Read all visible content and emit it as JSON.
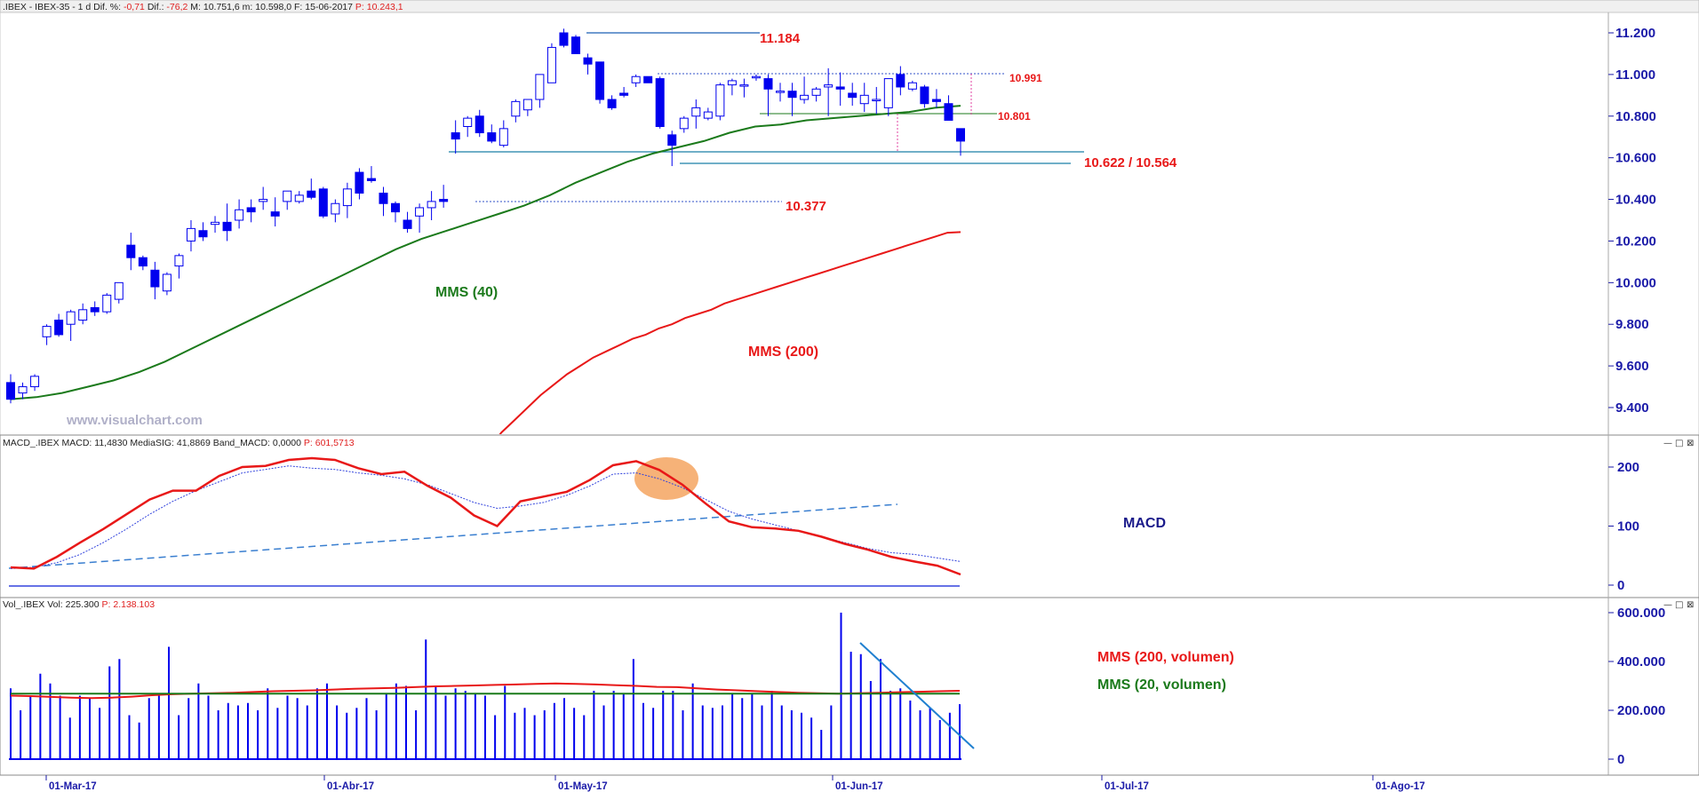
{
  "header": {
    "price": {
      "prefix": ".IBEX - IBEX-35 -  1 d  Dif. %: ",
      "pct": "-0,71",
      "dif_label": "  Dif.: ",
      "dif": "-76,2",
      "mid": "  M: 10.751,6  m: 10.598,0  F: 15-06-2017  ",
      "p": "P: 10.243,1"
    },
    "macd": {
      "prefix": "MACD_.IBEX  MACD: 11,4830  MediaSIG: 41,8869  Band_MACD: 0,0000  ",
      "p": "P: 601,5713"
    },
    "volume": {
      "prefix": "Vol_.IBEX  Vol: 225.300  ",
      "p": "P: 2.138.103"
    }
  },
  "watermark": "www.visualchart.com",
  "window_icons": [
    "—",
    "□",
    "⊠"
  ],
  "colors": {
    "up_candle": "#ffffff",
    "down_candle": "#0000ee",
    "candle_outline": "#0000ee",
    "mms40": "#1b7a1b",
    "mms200": "#e81818",
    "macd": "#e81818",
    "signal": "#3344dd",
    "axis_text": "#1a1aa8",
    "volume_bars": "#0000ee",
    "highlight": "#f4a460"
  },
  "annotations": {
    "top_high": "11.184",
    "range_high": "10.991",
    "range_mid": "10.801",
    "support": "10.622 / 10.564",
    "gap_level": "10.377",
    "mms40_label": "MMS (40)",
    "mms200_label": "MMS (200)",
    "macd_label": "MACD",
    "vol200_label": "MMS (200, volumen)",
    "vol20_label": "MMS (20, volumen)"
  },
  "chart_data": [
    {
      "type": "candlestick",
      "title": "IBEX-35 daily",
      "x_dates": [
        "01-Mar-17",
        "01-Abr-17",
        "01-May-17",
        "01-Jun-17",
        "01-Jul-17",
        "01-Ago-17"
      ],
      "y_ticks": [
        "11.200",
        "11.000",
        "10.800",
        "10.600",
        "10.400",
        "10.200",
        "10.000",
        "9.800",
        "9.600",
        "9.400"
      ],
      "ylim": [
        9270,
        11300
      ],
      "ohlc": [
        [
          9520,
          9560,
          9420,
          9440
        ],
        [
          9470,
          9520,
          9440,
          9500
        ],
        [
          9500,
          9560,
          9480,
          9550
        ],
        [
          9740,
          9800,
          9700,
          9790
        ],
        [
          9820,
          9850,
          9740,
          9750
        ],
        [
          9800,
          9870,
          9720,
          9860
        ],
        [
          9820,
          9900,
          9800,
          9870
        ],
        [
          9880,
          9910,
          9840,
          9860
        ],
        [
          9860,
          9950,
          9850,
          9940
        ],
        [
          9920,
          10000,
          9900,
          10000
        ],
        [
          10180,
          10240,
          10060,
          10120
        ],
        [
          10120,
          10130,
          10060,
          10080
        ],
        [
          10060,
          10100,
          9920,
          9980
        ],
        [
          9960,
          10050,
          9940,
          10040
        ],
        [
          10080,
          10140,
          10020,
          10130
        ],
        [
          10200,
          10300,
          10150,
          10260
        ],
        [
          10250,
          10290,
          10200,
          10220
        ],
        [
          10280,
          10320,
          10240,
          10290
        ],
        [
          10290,
          10380,
          10200,
          10250
        ],
        [
          10300,
          10400,
          10260,
          10350
        ],
        [
          10360,
          10400,
          10290,
          10340
        ],
        [
          10390,
          10460,
          10350,
          10400
        ],
        [
          10340,
          10410,
          10270,
          10320
        ],
        [
          10390,
          10440,
          10350,
          10440
        ],
        [
          10390,
          10440,
          10380,
          10420
        ],
        [
          10440,
          10500,
          10400,
          10410
        ],
        [
          10450,
          10460,
          10310,
          10320
        ],
        [
          10330,
          10400,
          10290,
          10380
        ],
        [
          10370,
          10480,
          10310,
          10450
        ],
        [
          10530,
          10550,
          10400,
          10430
        ],
        [
          10500,
          10560,
          10480,
          10490
        ],
        [
          10430,
          10460,
          10320,
          10380
        ],
        [
          10380,
          10390,
          10290,
          10340
        ],
        [
          10300,
          10340,
          10240,
          10260
        ],
        [
          10320,
          10380,
          10240,
          10360
        ],
        [
          10360,
          10440,
          10300,
          10390
        ],
        [
          10400,
          10470,
          10360,
          10390
        ],
        [
          10720,
          10780,
          10620,
          10690
        ],
        [
          10750,
          10800,
          10700,
          10790
        ],
        [
          10800,
          10830,
          10700,
          10720
        ],
        [
          10720,
          10760,
          10670,
          10680
        ],
        [
          10660,
          10780,
          10650,
          10740
        ],
        [
          10800,
          10880,
          10770,
          10870
        ],
        [
          10830,
          10880,
          10800,
          10880
        ],
        [
          10880,
          11000,
          10840,
          11000
        ],
        [
          10960,
          11150,
          10960,
          11130
        ],
        [
          11200,
          11220,
          11130,
          11140
        ],
        [
          11180,
          11190,
          11110,
          11100
        ],
        [
          11080,
          11100,
          11000,
          11050
        ],
        [
          11060,
          11060,
          10860,
          10880
        ],
        [
          10880,
          10900,
          10830,
          10840
        ],
        [
          10910,
          10940,
          10890,
          10900
        ],
        [
          10960,
          11000,
          10940,
          10990
        ],
        [
          10990,
          10990,
          10960,
          10960
        ],
        [
          10980,
          10990,
          10740,
          10750
        ],
        [
          10710,
          10730,
          10560,
          10660
        ],
        [
          10740,
          10800,
          10720,
          10790
        ],
        [
          10800,
          10880,
          10740,
          10840
        ],
        [
          10790,
          10840,
          10780,
          10820
        ],
        [
          10800,
          10960,
          10780,
          10950
        ],
        [
          10950,
          10980,
          10900,
          10970
        ],
        [
          10950,
          10980,
          10890,
          10950
        ],
        [
          10990,
          11000,
          10970,
          10990
        ],
        [
          10980,
          11000,
          10800,
          10930
        ],
        [
          10920,
          10960,
          10870,
          10920
        ],
        [
          10920,
          10960,
          10800,
          10890
        ],
        [
          10880,
          10990,
          10860,
          10900
        ],
        [
          10900,
          10940,
          10870,
          10930
        ],
        [
          10940,
          11030,
          10800,
          10950
        ],
        [
          10940,
          11010,
          10850,
          10930
        ],
        [
          10910,
          10960,
          10850,
          10890
        ],
        [
          10860,
          10960,
          10820,
          10900
        ],
        [
          10880,
          10940,
          10810,
          10880
        ],
        [
          10840,
          10980,
          10800,
          10980
        ],
        [
          11000,
          11040,
          10900,
          10940
        ],
        [
          10930,
          10970,
          10920,
          10960
        ],
        [
          10940,
          10950,
          10840,
          10860
        ],
        [
          10880,
          10930,
          10840,
          10870
        ],
        [
          10860,
          10900,
          10780,
          10780
        ],
        [
          10740,
          10740,
          10610,
          10680
        ]
      ],
      "mms40": [
        9440,
        9450,
        9470,
        9500,
        9530,
        9570,
        9620,
        9680,
        9740,
        9800,
        9860,
        9920,
        9980,
        10040,
        10100,
        10160,
        10210,
        10250,
        10290,
        10330,
        10370,
        10420,
        10480,
        10530,
        10580,
        10620,
        10650,
        10680,
        10720,
        10750,
        10760,
        10780,
        10790,
        10800,
        10810,
        10820,
        10840,
        10850
      ],
      "mms200": [
        9010,
        9120,
        9200,
        9280,
        9340,
        9400,
        9460,
        9510,
        9560,
        9600,
        9640,
        9670,
        9700,
        9730,
        9750,
        9780,
        9800,
        9830,
        9850,
        9870,
        9900,
        9920,
        9940,
        9960,
        9980,
        10000,
        10020,
        10040,
        10060,
        10080,
        10100,
        10120,
        10140,
        10160,
        10180,
        10200,
        10220,
        10240,
        10243
      ],
      "levels": [
        {
          "label": "11.184",
          "value": 11184
        },
        {
          "label": "10.991",
          "value": 10991
        },
        {
          "label": "10.801",
          "value": 10801
        },
        {
          "label": "10.622",
          "value": 10622
        },
        {
          "label": "10.564",
          "value": 10564
        },
        {
          "label": "10.377",
          "value": 10377
        }
      ]
    },
    {
      "type": "line",
      "title": "MACD",
      "y_ticks": [
        "200",
        "100",
        "0"
      ],
      "ylim": [
        -20,
        240
      ],
      "series": [
        {
          "name": "MACD",
          "values": [
            30,
            28,
            48,
            72,
            95,
            120,
            145,
            160,
            160,
            185,
            200,
            202,
            212,
            215,
            212,
            198,
            188,
            192,
            168,
            148,
            118,
            100,
            142,
            150,
            158,
            178,
            203,
            210,
            195,
            170,
            138,
            108,
            98,
            96,
            92,
            82,
            70,
            60,
            48,
            40,
            33,
            18
          ]
        },
        {
          "name": "MediaSIG",
          "values": [
            28,
            30,
            38,
            52,
            72,
            95,
            120,
            142,
            160,
            175,
            190,
            196,
            202,
            198,
            196,
            190,
            186,
            180,
            170,
            155,
            140,
            130,
            134,
            140,
            152,
            168,
            188,
            190,
            180,
            165,
            145,
            125,
            112,
            102,
            92,
            82,
            72,
            62,
            55,
            52,
            46,
            40
          ]
        }
      ]
    },
    {
      "type": "bar",
      "title": "Volume",
      "y_ticks": [
        "600.000",
        "400.000",
        "200.000",
        "0"
      ],
      "ylim": [
        -25000,
        620000
      ],
      "values": [
        290,
        200,
        260,
        350,
        310,
        260,
        170,
        260,
        250,
        210,
        380,
        410,
        180,
        150,
        250,
        270,
        460,
        180,
        250,
        310,
        260,
        200,
        230,
        220,
        230,
        200,
        290,
        210,
        260,
        250,
        220,
        290,
        310,
        220,
        190,
        210,
        250,
        200,
        270,
        310,
        300,
        200,
        490,
        300,
        260,
        290,
        280,
        270,
        260,
        180,
        300,
        190,
        210,
        180,
        200,
        230,
        250,
        210,
        180,
        280,
        220,
        280,
        270,
        410,
        230,
        210,
        280,
        280,
        200,
        310,
        220,
        210,
        220,
        270,
        250,
        270,
        220,
        280,
        220,
        200,
        190,
        170,
        120,
        220,
        600,
        440,
        430,
        320,
        410,
        280,
        290,
        240,
        200,
        210,
        160,
        190,
        225
      ],
      "mms200_volume": [
        260,
        258,
        255,
        252,
        250,
        252,
        256,
        262,
        266,
        268,
        270,
        272,
        275,
        278,
        280,
        282,
        285,
        288,
        290,
        292,
        295,
        298,
        300,
        302,
        304,
        306,
        308,
        310,
        308,
        306,
        303,
        300,
        296,
        295,
        290,
        285,
        282,
        278,
        275,
        272,
        270,
        268,
        270,
        272,
        274,
        276,
        278,
        280
      ],
      "mms20_volume": 268,
      "extra_labels": [
        "MMS (200, volumen)",
        "MMS (20, volumen)"
      ]
    }
  ]
}
